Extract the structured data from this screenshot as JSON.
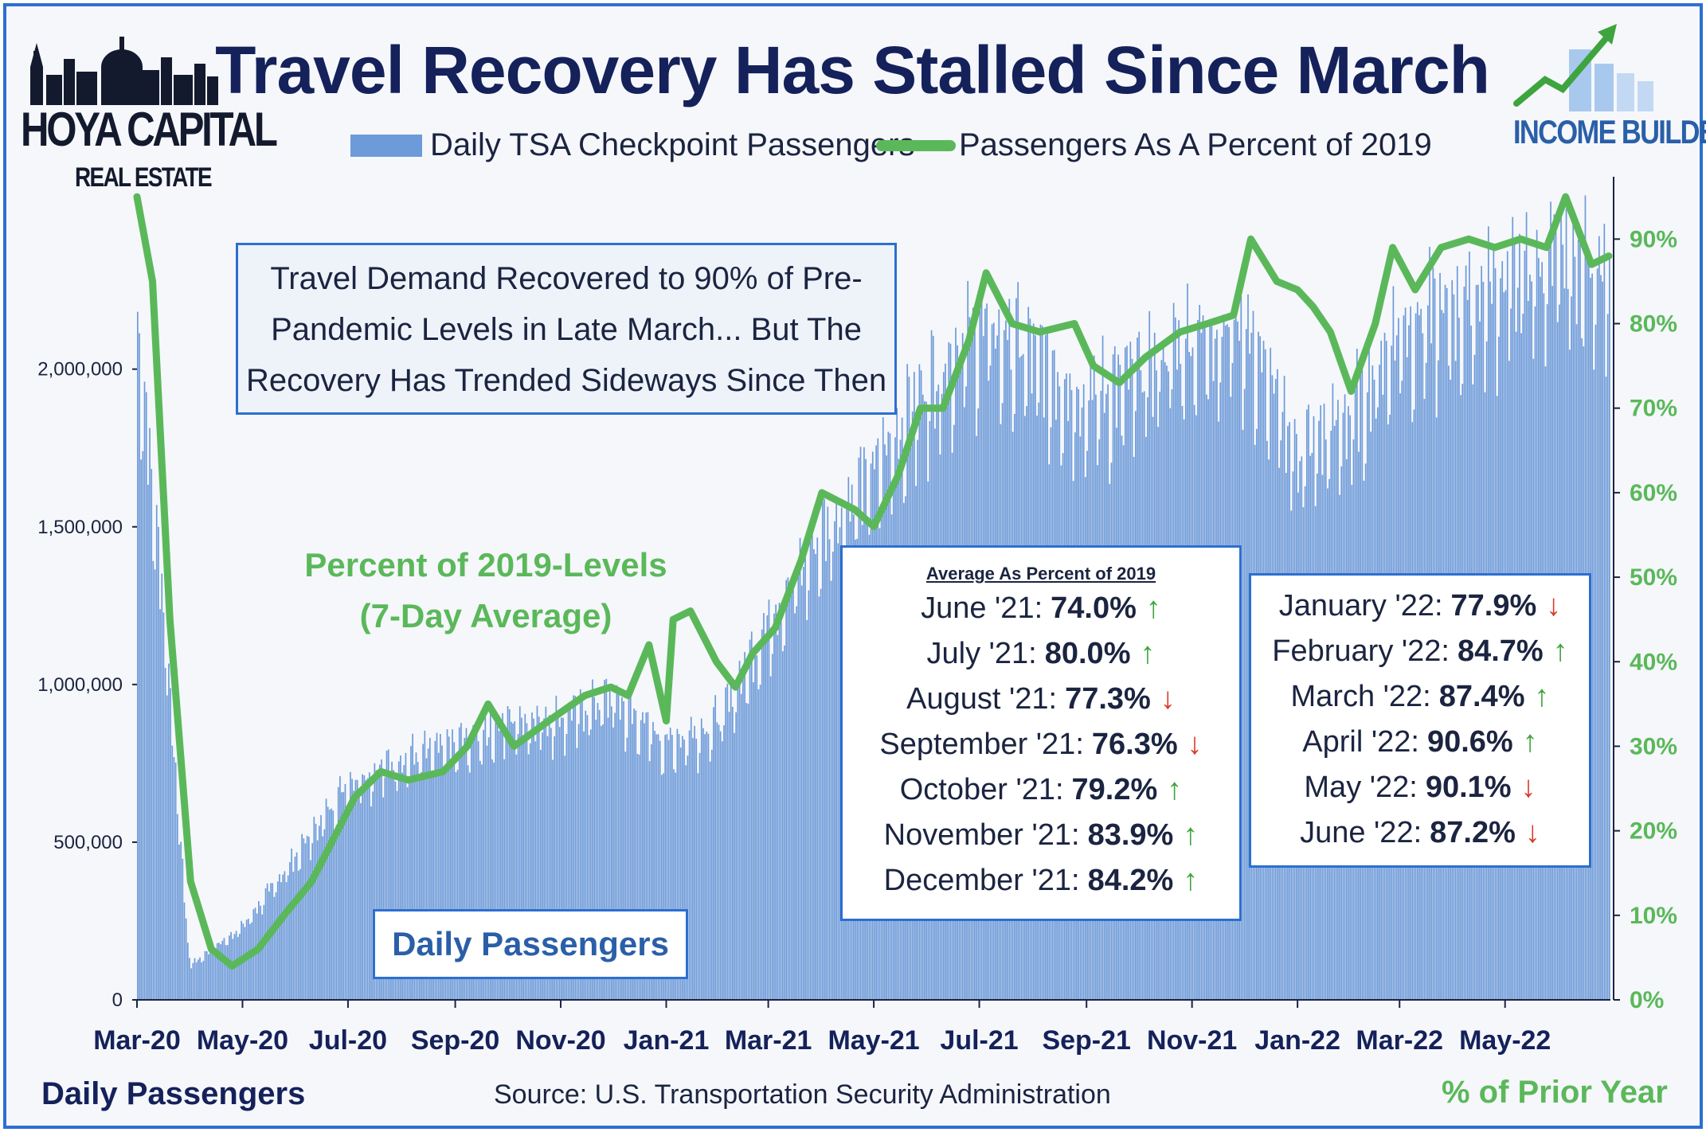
{
  "title": "Travel Recovery Has Stalled Since March",
  "legend": {
    "bars": "Daily TSA Checkpoint Passengers",
    "line": "Passengers As A Percent of 2019"
  },
  "logos": {
    "left_line1": "HOYA CAPITAL",
    "left_line2": "REAL ESTATE",
    "right": "INCOME BUILDER"
  },
  "callout": [
    "Travel Demand Recovered to 90% of Pre-",
    "Pandemic Levels in Late March... But The",
    "Recovery Has Trended Sideways Since Then"
  ],
  "line_annotation": [
    "Percent of 2019-Levels",
    "(7-Day Average)"
  ],
  "bars_annotation": "Daily Passengers",
  "footer": {
    "left_axis_title": "Daily Passengers",
    "source": "Source: U.S. Transportation Security Administration",
    "right_axis_title": "% of Prior Year"
  },
  "monthly_table": {
    "header": "Average As Percent of 2019",
    "left_rows": [
      {
        "label": "June '21:",
        "value": "74.0%",
        "dir": "up"
      },
      {
        "label": "July '21:",
        "value": "80.0%",
        "dir": "up"
      },
      {
        "label": "August '21:",
        "value": "77.3%",
        "dir": "down"
      },
      {
        "label": "September '21:",
        "value": "76.3%",
        "dir": "down"
      },
      {
        "label": "October '21:",
        "value": "79.2%",
        "dir": "up"
      },
      {
        "label": "November '21:",
        "value": "83.9%",
        "dir": "up"
      },
      {
        "label": "December '21:",
        "value": "84.2%",
        "dir": "up"
      }
    ],
    "right_rows": [
      {
        "label": "January '22:",
        "value": "77.9%",
        "dir": "down"
      },
      {
        "label": "February '22:",
        "value": "84.7%",
        "dir": "up"
      },
      {
        "label": "March '22:",
        "value": "87.4%",
        "dir": "up"
      },
      {
        "label": "April '22:",
        "value": "90.6%",
        "dir": "up"
      },
      {
        "label": "May '22:",
        "value": "90.1%",
        "dir": "down"
      },
      {
        "label": "June '22:",
        "value": "87.2%",
        "dir": "down"
      }
    ]
  },
  "colors": {
    "bars": "#6d9ad8",
    "line": "#5bb85a",
    "title": "#15215a",
    "border": "#2c6fd0",
    "up": "#3ea43d",
    "down": "#d93a2b"
  },
  "chart_data": {
    "type": "bar+line",
    "title": "Travel Recovery Has Stalled Since March",
    "x_axis": {
      "type": "date",
      "range": [
        "2020-03-01",
        "2022-06-30"
      ],
      "tick_labels": [
        "Mar-20",
        "May-20",
        "Jul-20",
        "Sep-20",
        "Nov-20",
        "Jan-21",
        "Mar-21",
        "May-21",
        "Jul-21",
        "Sep-21",
        "Nov-21",
        "Jan-22",
        "Mar-22",
        "May-22"
      ],
      "tick_dates": [
        "2020-03-01",
        "2020-05-01",
        "2020-07-01",
        "2020-09-01",
        "2020-11-01",
        "2021-01-01",
        "2021-03-01",
        "2021-05-01",
        "2021-07-01",
        "2021-09-01",
        "2021-11-01",
        "2022-01-01",
        "2022-03-01",
        "2022-05-01"
      ]
    },
    "y_left": {
      "title": "Daily Passengers",
      "range": [
        0,
        2600000
      ],
      "tick_values": [
        0,
        500000,
        1000000,
        1500000,
        2000000
      ],
      "tick_labels": [
        "0",
        "500,000",
        "1,000,000",
        "1,500,000",
        "2,000,000"
      ]
    },
    "y_right": {
      "title": "% of Prior Year",
      "range": [
        0,
        97
      ],
      "tick_values": [
        0,
        10,
        20,
        30,
        40,
        50,
        60,
        70,
        80,
        90
      ],
      "tick_labels": [
        "0%",
        "10%",
        "20%",
        "30%",
        "40%",
        "50%",
        "60%",
        "70%",
        "80%",
        "90%"
      ]
    },
    "series": [
      {
        "name": "Daily TSA Checkpoint Passengers",
        "type": "bar",
        "axis": "left",
        "note": "daily values approximated by monthly level (7-day average passengers) with weekday variation",
        "monthly_dates": [
          "2020-03-01",
          "2020-04-01",
          "2020-05-01",
          "2020-06-01",
          "2020-07-01",
          "2020-08-01",
          "2020-09-01",
          "2020-10-01",
          "2020-11-01",
          "2020-12-01",
          "2021-01-01",
          "2021-02-01",
          "2021-03-01",
          "2021-04-01",
          "2021-05-01",
          "2021-06-01",
          "2021-07-01",
          "2021-08-01",
          "2021-09-01",
          "2021-10-01",
          "2021-11-01",
          "2021-12-01",
          "2022-01-01",
          "2022-02-01",
          "2022-03-01",
          "2022-04-01",
          "2022-05-01",
          "2022-06-01"
        ],
        "monthly_values": [
          1200000,
          110000,
          230000,
          450000,
          680000,
          750000,
          790000,
          870000,
          880000,
          940000,
          800000,
          870000,
          1180000,
          1450000,
          1650000,
          1920000,
          2100000,
          2000000,
          1870000,
          1940000,
          2070000,
          2100000,
          1700000,
          1820000,
          2100000,
          2150000,
          2250000,
          2300000
        ]
      },
      {
        "name": "Passengers As A Percent of 2019",
        "type": "line",
        "axis": "right",
        "dates": [
          "2020-03-01",
          "2020-03-10",
          "2020-03-20",
          "2020-04-01",
          "2020-04-13",
          "2020-04-25",
          "2020-05-10",
          "2020-05-25",
          "2020-06-10",
          "2020-06-25",
          "2020-07-05",
          "2020-07-20",
          "2020-08-05",
          "2020-08-25",
          "2020-09-08",
          "2020-09-20",
          "2020-10-05",
          "2020-10-25",
          "2020-11-15",
          "2020-11-30",
          "2020-12-10",
          "2020-12-22",
          "2021-01-01",
          "2021-01-05",
          "2021-01-15",
          "2021-01-30",
          "2021-02-10",
          "2021-02-20",
          "2021-03-05",
          "2021-03-20",
          "2021-04-01",
          "2021-04-20",
          "2021-05-01",
          "2021-05-15",
          "2021-05-28",
          "2021-06-10",
          "2021-06-25",
          "2021-07-05",
          "2021-07-20",
          "2021-08-05",
          "2021-08-25",
          "2021-09-05",
          "2021-09-20",
          "2021-10-05",
          "2021-10-25",
          "2021-11-10",
          "2021-11-25",
          "2021-12-05",
          "2021-12-20",
          "2022-01-01",
          "2022-01-10",
          "2022-01-20",
          "2022-02-01",
          "2022-02-15",
          "2022-02-25",
          "2022-03-10",
          "2022-03-25",
          "2022-04-10",
          "2022-04-25",
          "2022-05-10",
          "2022-05-25",
          "2022-06-05",
          "2022-06-20",
          "2022-06-30"
        ],
        "values": [
          95,
          85,
          45,
          14,
          6,
          4,
          6,
          10,
          14,
          20,
          24,
          27,
          26,
          27,
          30,
          35,
          30,
          33,
          36,
          37,
          36,
          42,
          33,
          45,
          46,
          40,
          37,
          41,
          44,
          52,
          60,
          58,
          56,
          62,
          70,
          70,
          78,
          86,
          80,
          79,
          80,
          75,
          73,
          76,
          79,
          80,
          81,
          90,
          85,
          84,
          82,
          79,
          72,
          80,
          89,
          84,
          89,
          90,
          89,
          90,
          89,
          95,
          87,
          88
        ]
      }
    ],
    "legend": "top",
    "grid": false
  }
}
